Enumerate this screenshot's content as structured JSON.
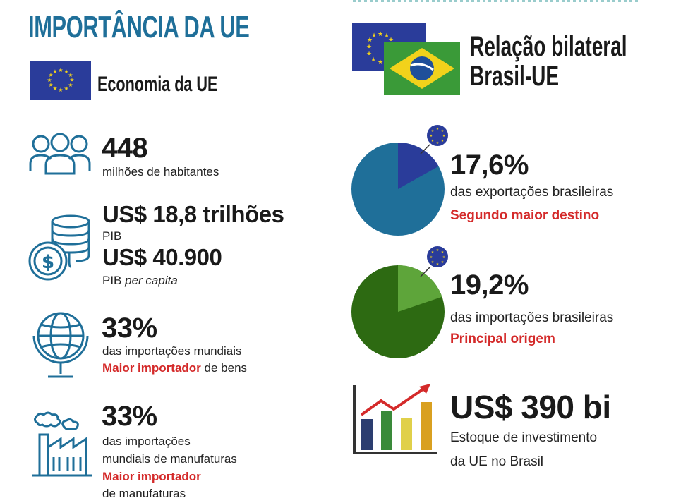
{
  "colors": {
    "title_blue": "#1f6f99",
    "icon_blue": "#1f6f99",
    "eu_blue": "#2a3c9a",
    "eu_star": "#f2d21b",
    "red": "#d42a2a",
    "pie_export": "#1f6f99",
    "pie_export_slice": "#2a3c9a",
    "pie_import": "#2d6a12",
    "pie_import_slice": "#5ea53a"
  },
  "left": {
    "title": "IMPORTÂNCIA DA UE",
    "section_title": "Economia da UE",
    "population": {
      "value": "448",
      "label": "milhões de habitantes"
    },
    "gdp": {
      "value": "US$ 18,8 trilhões",
      "label": "PIB",
      "per_capita_value": "US$ 40.900",
      "per_capita_label_a": "PIB",
      "per_capita_label_b": "per capita"
    },
    "world_imports": {
      "value": "33%",
      "label": "das importações mundiais",
      "highlight": "Maior importador",
      "highlight_rest": "de bens"
    },
    "manufactures": {
      "value": "33%",
      "label_1": "das importações",
      "label_2": "mundiais de manufaturas",
      "highlight": "Maior importador",
      "label_3": "de manufaturas"
    }
  },
  "right": {
    "title_1": "Relação bilateral",
    "title_2": "Brasil-UE",
    "exports": {
      "value": "17,6%",
      "label": "das exportações brasileiras",
      "highlight": "Segundo maior destino",
      "share": 17.6
    },
    "imports": {
      "value": "19,2%",
      "label": "das importações brasileiras",
      "highlight": "Principal origem",
      "share": 19.2
    },
    "investment": {
      "value": "US$ 390 bi",
      "label_1": "Estoque de investimento",
      "label_2": "da UE no Brasil"
    }
  }
}
